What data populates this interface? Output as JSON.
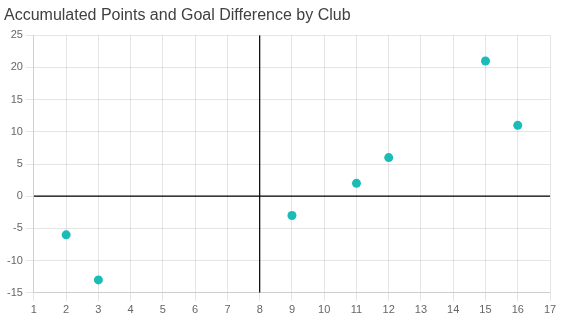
{
  "chart_data": {
    "type": "scatter",
    "title": "Accumulated Points and Goal Difference by Club",
    "x": [
      2,
      3,
      9,
      11,
      12,
      15,
      16
    ],
    "values": [
      -6,
      -13,
      -3,
      2,
      6,
      21,
      11
    ],
    "color": "#1ABCB8",
    "xlim": [
      1,
      17
    ],
    "ylim": [
      -15,
      25
    ],
    "xticks": [
      1,
      2,
      3,
      4,
      5,
      6,
      7,
      8,
      9,
      10,
      11,
      12,
      13,
      14,
      15,
      16,
      17
    ],
    "yticks": [
      -15,
      -10,
      -5,
      0,
      5,
      10,
      15,
      20,
      25
    ],
    "quadrant_lines": {
      "x": 8,
      "y": 0
    },
    "grid": true
  }
}
